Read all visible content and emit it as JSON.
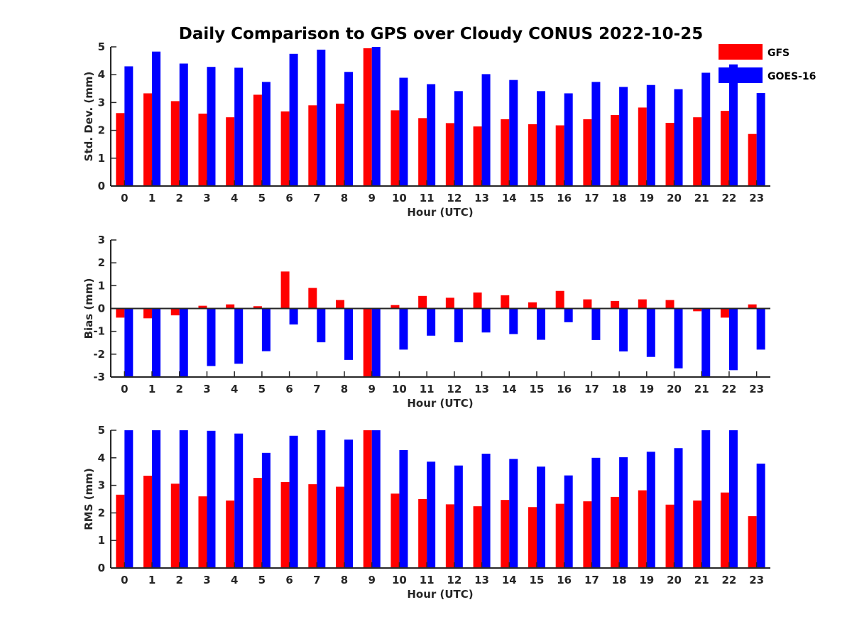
{
  "colors": {
    "gfs": "#ff0000",
    "goes": "#0000ff",
    "axis": "#262626"
  },
  "chart_data": {
    "title": "Daily Comparison to GPS over Cloudy CONUS 2022-10-25",
    "legend": {
      "placement": "top-right",
      "entries": [
        "GFS",
        "GOES-16"
      ]
    },
    "panels": [
      {
        "type": "bar",
        "ylabel": "Std. Dev. (mm)",
        "xlabel": "Hour (UTC)",
        "ylim": [
          0,
          5
        ],
        "yticks": [
          0,
          1,
          2,
          3,
          4,
          5
        ],
        "categories": [
          "0",
          "1",
          "2",
          "3",
          "4",
          "5",
          "6",
          "7",
          "8",
          "9",
          "10",
          "11",
          "12",
          "13",
          "14",
          "15",
          "16",
          "17",
          "18",
          "19",
          "20",
          "21",
          "22",
          "23"
        ],
        "series": [
          {
            "name": "GFS",
            "values": [
              2.62,
              3.33,
              3.05,
              2.6,
              2.47,
              3.28,
              2.68,
              2.9,
              2.96,
              4.95,
              2.72,
              2.44,
              2.26,
              2.14,
              2.4,
              2.22,
              2.18,
              2.4,
              2.55,
              2.82,
              2.27,
              2.47,
              2.7,
              1.87
            ]
          },
          {
            "name": "GOES-16",
            "values": [
              4.3,
              4.83,
              4.4,
              4.28,
              4.25,
              3.74,
              4.75,
              4.9,
              4.1,
              5.0,
              3.89,
              3.66,
              3.41,
              4.02,
              3.81,
              3.41,
              3.33,
              3.74,
              3.56,
              3.63,
              3.48,
              4.07,
              4.37,
              3.34
            ]
          }
        ]
      },
      {
        "type": "bar",
        "ylabel": "Bias (mm)",
        "xlabel": "Hour (UTC)",
        "ylim": [
          -3,
          3
        ],
        "yticks": [
          -3,
          -2,
          -1,
          0,
          1,
          2,
          3
        ],
        "categories": [
          "0",
          "1",
          "2",
          "3",
          "4",
          "5",
          "6",
          "7",
          "8",
          "9",
          "10",
          "11",
          "12",
          "13",
          "14",
          "15",
          "16",
          "17",
          "18",
          "19",
          "20",
          "21",
          "22",
          "23"
        ],
        "series": [
          {
            "name": "GFS",
            "values": [
              -0.4,
              -0.43,
              -0.3,
              0.12,
              0.18,
              0.1,
              1.62,
              0.9,
              0.37,
              -3.0,
              0.15,
              0.55,
              0.47,
              0.7,
              0.58,
              0.27,
              0.77,
              0.4,
              0.33,
              0.4,
              0.37,
              -0.12,
              -0.4,
              0.18
            ]
          },
          {
            "name": "GOES-16",
            "values": [
              -3.0,
              -3.0,
              -3.0,
              -2.52,
              -2.42,
              -1.87,
              -0.7,
              -1.48,
              -2.25,
              -3.0,
              -1.8,
              -1.19,
              -1.48,
              -1.05,
              -1.12,
              -1.37,
              -0.6,
              -1.38,
              -1.88,
              -2.12,
              -2.62,
              -3.0,
              -2.7,
              -1.8
            ]
          }
        ]
      },
      {
        "type": "bar",
        "ylabel": "RMS (mm)",
        "xlabel": "Hour (UTC)",
        "ylim": [
          0,
          5
        ],
        "yticks": [
          0,
          1,
          2,
          3,
          4,
          5
        ],
        "categories": [
          "0",
          "1",
          "2",
          "3",
          "4",
          "5",
          "6",
          "7",
          "8",
          "9",
          "10",
          "11",
          "12",
          "13",
          "14",
          "15",
          "16",
          "17",
          "18",
          "19",
          "20",
          "21",
          "22",
          "23"
        ],
        "series": [
          {
            "name": "GFS",
            "values": [
              2.66,
              3.35,
              3.06,
              2.6,
              2.45,
              3.27,
              3.12,
              3.04,
              2.95,
              5.0,
              2.7,
              2.5,
              2.31,
              2.24,
              2.47,
              2.21,
              2.33,
              2.42,
              2.58,
              2.82,
              2.3,
              2.45,
              2.74,
              1.88
            ]
          },
          {
            "name": "GOES-16",
            "values": [
              5.0,
              5.0,
              5.0,
              4.98,
              4.88,
              4.18,
              4.8,
              5.0,
              4.66,
              5.0,
              4.28,
              3.86,
              3.72,
              4.15,
              3.96,
              3.68,
              3.36,
              4.0,
              4.02,
              4.22,
              4.35,
              5.0,
              5.0,
              3.79
            ]
          }
        ]
      }
    ]
  }
}
